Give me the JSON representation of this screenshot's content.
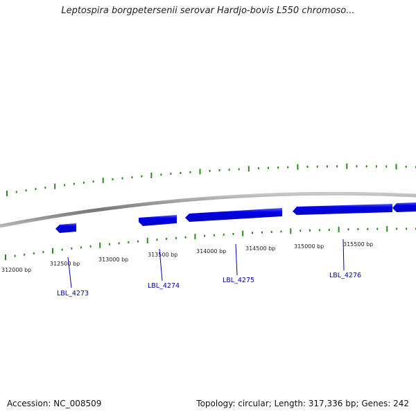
{
  "title": "Leptospira borgpetersenii serovar Hardjo-bovis L550 chromoso...",
  "footer": {
    "accession": "Accession: NC_008509",
    "summary": "Topology: circular; Length: 317,336 bp; Genes: 242"
  },
  "colors": {
    "backbone": "#8c8c8c",
    "tick": "#2a8a1a",
    "gene": "#0000e6",
    "gene_label": "#0000aa",
    "leader": "#0000aa"
  },
  "tick_labels": [
    {
      "id": "t312000",
      "label": "312000 bp"
    },
    {
      "id": "t312500",
      "label": "312500 bp"
    },
    {
      "id": "t313000",
      "label": "313000 bp"
    },
    {
      "id": "t313500",
      "label": "313500 bp"
    },
    {
      "id": "t314000",
      "label": "314000 bp"
    },
    {
      "id": "t314500",
      "label": "314500 bp"
    },
    {
      "id": "t315000",
      "label": "315000 bp"
    },
    {
      "id": "t315500",
      "label": "315500 bp"
    }
  ],
  "genes": [
    {
      "id": "LBL_4273",
      "label": "LBL_4273",
      "strand": "-"
    },
    {
      "id": "LBL_4274",
      "label": "LBL_4274",
      "strand": "+"
    },
    {
      "id": "LBL_4275",
      "label": "LBL_4275",
      "strand": "-"
    },
    {
      "id": "LBL_4276",
      "label": "LBL_4276",
      "strand": "+"
    }
  ]
}
